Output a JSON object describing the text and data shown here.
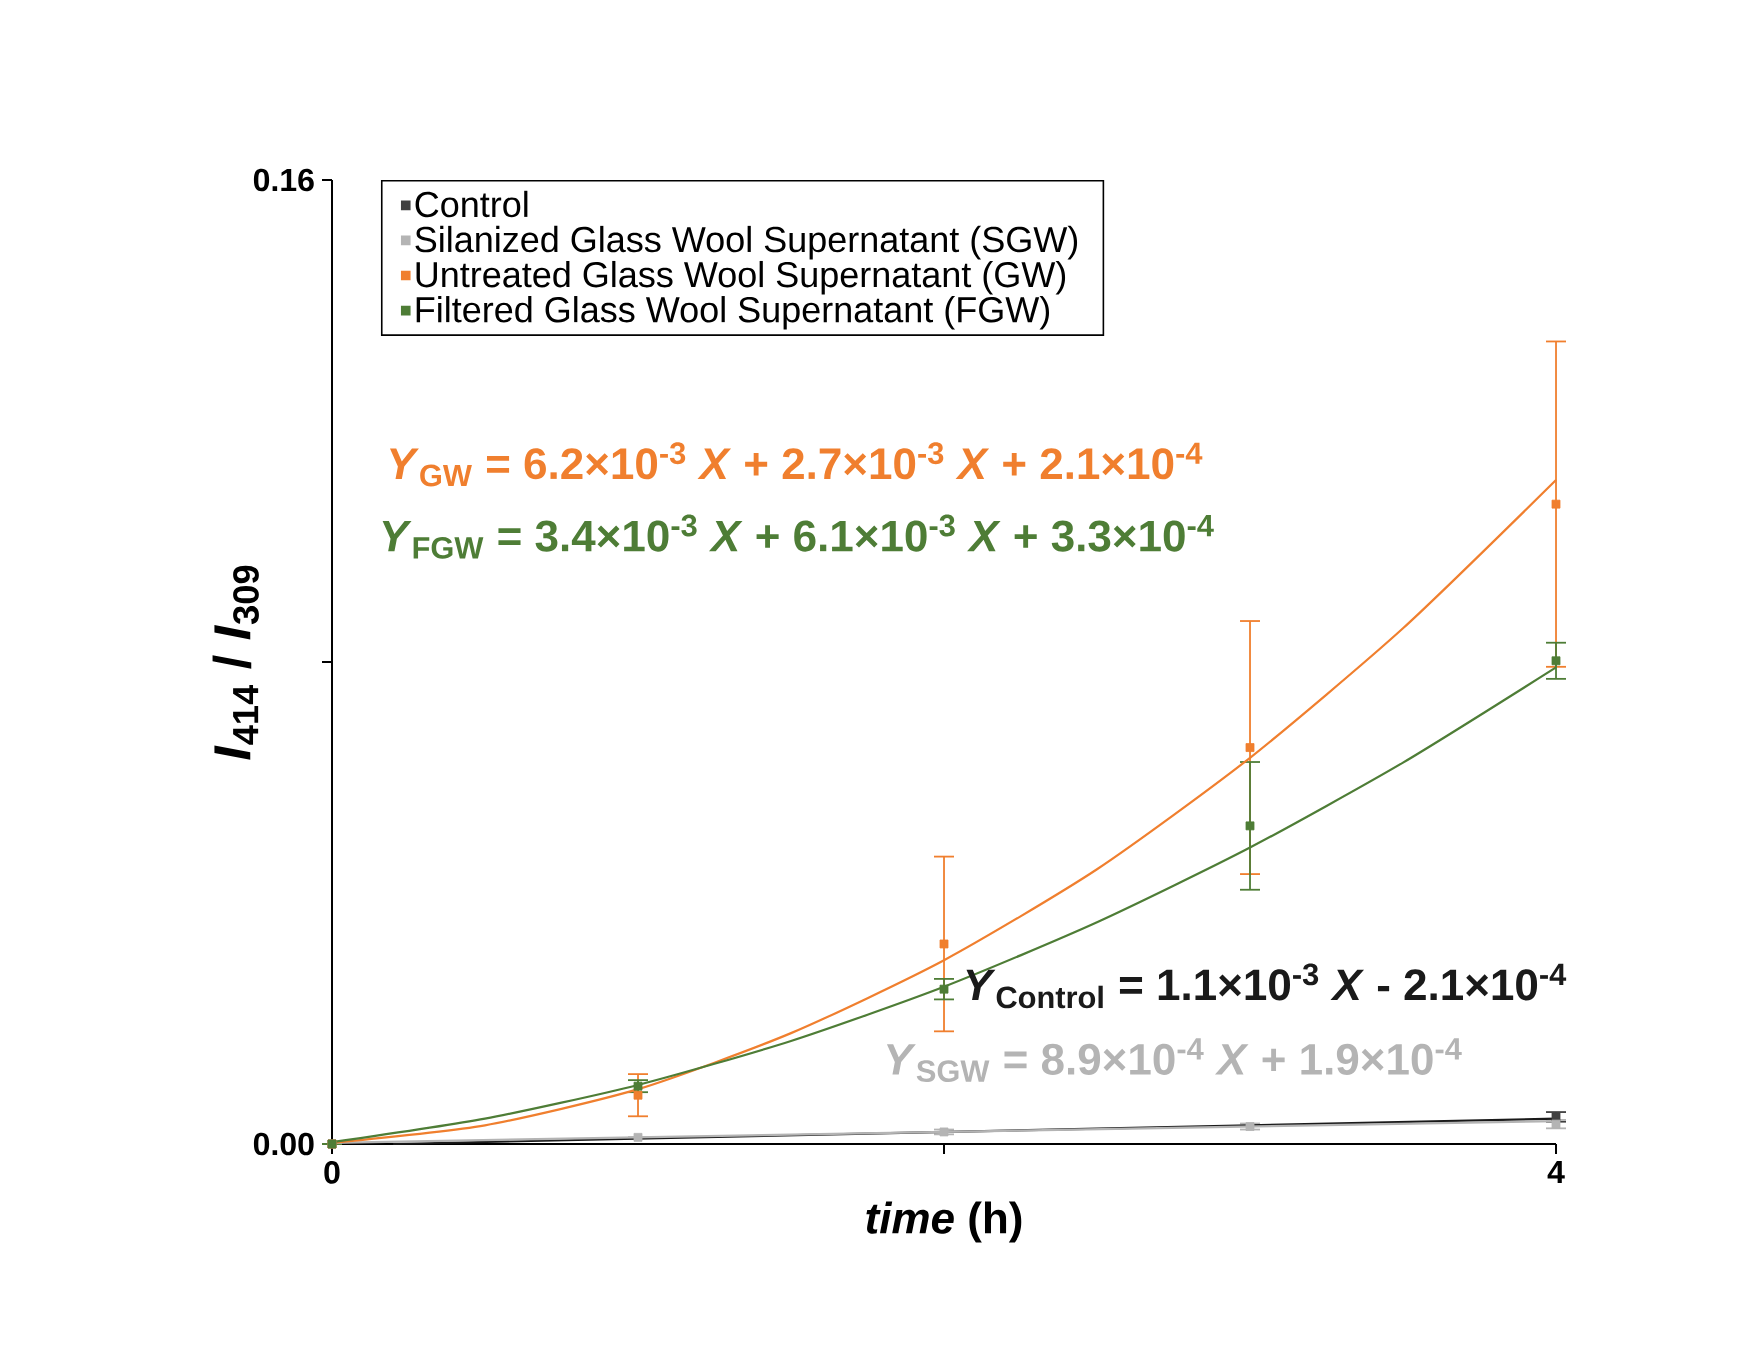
{
  "chart_data": {
    "type": "scatter",
    "xlabel": "*time* (h)",
    "ylabel": "*I*$_{414}$ / *I*$_{309}$",
    "x": [
      0,
      1,
      2,
      3,
      4
    ],
    "xlim": [
      0,
      4
    ],
    "xticks": [
      0,
      {
        "value": 2,
        "label": null
      },
      4
    ],
    "ylim": [
      0,
      0.16
    ],
    "yticks": [
      {
        "value": 0,
        "label": "0.00"
      },
      {
        "value": 0.08,
        "label": null
      },
      {
        "value": 0.16,
        "label": "0.16"
      }
    ],
    "marker": "square",
    "legend": "top left",
    "series": [
      {
        "name": "Control",
        "color": "#404040",
        "values": [
          0,
          null,
          null,
          null,
          0.0045
        ],
        "errors": [
          null,
          null,
          null,
          null,
          0.0008
        ]
      },
      {
        "name": "Silanized Glass Wool Supernatant (SGW)",
        "color": "#b4b4b4",
        "values": [
          0,
          0.0011,
          0.002,
          0.0029,
          0.0033
        ],
        "errors": [
          null,
          null,
          0.0004,
          0.0005,
          0.0007
        ]
      },
      {
        "name": "Untreated Glass Wool Supernatant (GW)",
        "color": "#f07f2e",
        "values": [
          0,
          0.0081,
          0.0332,
          0.0658,
          0.1062
        ],
        "errors": [
          null,
          0.0035,
          0.0145,
          0.021,
          0.027
        ]
      },
      {
        "name": "Filtered Glass Wool Supernatant (FGW)",
        "color": "#4e7d36",
        "values": [
          0,
          0.0096,
          0.0257,
          0.0528,
          0.0802
        ],
        "errors": [
          null,
          0.001,
          0.0017,
          0.0106,
          0.003
        ]
      },
      {
        "type": "line",
        "marker": "none",
        "color": "#1a1a1a",
        "x": [
          0.2,
          4
        ],
        "values": [
          0.0,
          0.0042
        ]
      },
      {
        "type": "line",
        "marker": "none",
        "color": "#b4b4b4",
        "x": [
          0,
          4
        ],
        "values": [
          0.0002,
          0.0038
        ]
      },
      {
        "type": "line",
        "marker": "none",
        "color": "#f07f2e",
        "x": [
          0,
          0.5,
          1,
          1.5,
          2,
          2.5,
          3,
          3.5,
          4
        ],
        "values": [
          0.0002,
          0.0031,
          0.0091,
          0.0184,
          0.0305,
          0.0456,
          0.0641,
          0.0856,
          0.1102
        ]
      },
      {
        "type": "line",
        "marker": "none",
        "color": "#4e7d36",
        "x": [
          0,
          0.5,
          1,
          1.5,
          2,
          2.5,
          3,
          3.5,
          4
        ],
        "values": [
          0.0003,
          0.0042,
          0.0098,
          0.0171,
          0.0261,
          0.0368,
          0.0492,
          0.0633,
          0.0791
        ]
      }
    ],
    "annotations": [
      "*Y*$_{GW}$ = 6.2×10$^{-3}$ *X* + 2.7×10$^{-3}$  *X* + 2.1×10$^{-4}$",
      "*Y*$_{FGW}$ = 3.4×10$^{-3}$ *X* + 6.1×10$^{-3}$  *X* + 3.3×10$^{-4}$",
      "*Y*$_{Control}$ = 1.1×10$^{-3}$ *X* - 2.1×10$^{-4}$",
      "*Y*$_{SGW}$ = 8.9×10$^{-4}$ *X* + 1.9×10$^{-4}$"
    ]
  }
}
